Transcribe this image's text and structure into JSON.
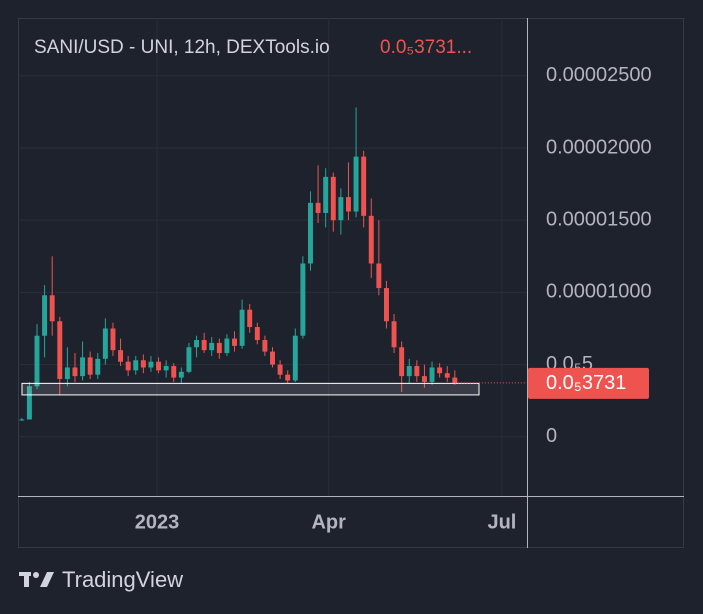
{
  "chart_data": {
    "type": "candlestick",
    "title": "SANI/USD - UNI, 12h, DEXTools.io",
    "title_value": "0.0₅3731...",
    "brand": "TradingView",
    "categories": [
      null,
      null,
      null,
      null,
      null,
      null,
      null,
      null,
      null,
      null,
      null,
      null,
      null,
      null,
      null,
      null,
      null,
      null,
      null,
      null,
      null,
      null,
      null,
      null,
      null,
      null,
      null,
      null,
      null,
      null,
      null,
      null,
      null,
      null,
      null,
      null,
      null,
      null,
      null,
      null,
      null,
      null,
      null,
      null,
      null,
      null,
      null,
      null,
      null,
      null,
      null,
      null,
      null,
      null,
      null,
      null,
      null,
      null
    ],
    "open": [
      1.2e-06,
      1.2e-06,
      3.5e-06,
      7e-06,
      9.8e-06,
      8e-06,
      4e-06,
      4.8e-06,
      4.2e-06,
      5.5e-06,
      4.3e-06,
      5.4e-06,
      7.5e-06,
      6e-06,
      5.2e-06,
      4.6e-06,
      5.3e-06,
      4.8e-06,
      5.2e-06,
      4.6e-06,
      4.9e-06,
      4.1e-06,
      4.5e-06,
      6.2e-06,
      6.7e-06,
      6e-06,
      6.5e-06,
      5.8e-06,
      6.8e-06,
      6.3e-06,
      8.8e-06,
      7.6e-06,
      6.7e-06,
      5.9e-06,
      5e-06,
      4.3e-06,
      3.9e-06,
      7e-06,
      1.2e-05,
      1.62e-05,
      1.55e-05,
      1.8e-05,
      1.5e-05,
      1.66e-05,
      1.56e-05,
      1.94e-05,
      1.53e-05,
      1.2e-05,
      1.03e-05,
      8e-06,
      6.2e-06,
      4.2e-06,
      4.9e-06,
      4.2e-06,
      3.8e-06,
      4.8e-06,
      4.4e-06,
      4.1e-06
    ],
    "high": [
      1.3e-06,
      3.8e-06,
      7.8e-06,
      1.05e-05,
      1.25e-05,
      8.3e-06,
      6.2e-06,
      5.8e-06,
      6.6e-06,
      5.9e-06,
      5.8e-06,
      8.2e-06,
      7.9e-06,
      6.8e-06,
      5.6e-06,
      5.6e-06,
      5.7e-06,
      5.6e-06,
      5.5e-06,
      5.3e-06,
      5.1e-06,
      4.8e-06,
      6.5e-06,
      7e-06,
      7.2e-06,
      6.9e-06,
      6.8e-06,
      7.1e-06,
      7.3e-06,
      9.5e-06,
      9.2e-06,
      7.9e-06,
      7e-06,
      6.2e-06,
      5.3e-06,
      4.6e-06,
      7.5e-06,
      1.25e-05,
      1.7e-05,
      1.88e-05,
      1.86e-05,
      1.83e-05,
      1.72e-05,
      1.9e-05,
      2.28e-05,
      1.98e-05,
      1.65e-05,
      1.5e-05,
      1.08e-05,
      8.5e-06,
      6.6e-06,
      5.4e-06,
      5.3e-06,
      5e-06,
      5.2e-06,
      5.1e-06,
      4.9e-06,
      4.6e-06
    ],
    "low": [
      1.1e-06,
      1.2e-06,
      3.3e-06,
      5.5e-06,
      7e-06,
      2.9e-06,
      3.5e-06,
      3.8e-06,
      3.9e-06,
      4e-06,
      4e-06,
      5e-06,
      5.6e-06,
      4.9e-06,
      4.2e-06,
      4.3e-06,
      4.4e-06,
      4.5e-06,
      4.4e-06,
      4.1e-06,
      3.8e-06,
      3.7e-06,
      4.4e-06,
      5.5e-06,
      5.8e-06,
      5.6e-06,
      5.4e-06,
      5.6e-06,
      5.9e-06,
      6.1e-06,
      7.2e-06,
      6.4e-06,
      5.6e-06,
      4.8e-06,
      4e-06,
      3.7e-06,
      3.8e-06,
      6.8e-06,
      1.15e-05,
      1.48e-05,
      1.45e-05,
      1.42e-05,
      1.4e-05,
      1.5e-05,
      1.52e-05,
      1.45e-05,
      1.1e-05,
      9.8e-06,
      7.5e-06,
      5.8e-06,
      3.1e-06,
      3.7e-06,
      3.8e-06,
      3.4e-06,
      3.6e-06,
      4.1e-06,
      3.8e-06,
      3.6e-06
    ],
    "close": [
      1.2e-06,
      3.5e-06,
      7e-06,
      9.8e-06,
      8e-06,
      4e-06,
      4.8e-06,
      4.2e-06,
      5.5e-06,
      4.3e-06,
      5.4e-06,
      7.5e-06,
      6e-06,
      5.2e-06,
      4.6e-06,
      5.3e-06,
      4.8e-06,
      5.2e-06,
      4.6e-06,
      4.9e-06,
      4.1e-06,
      4.5e-06,
      6.2e-06,
      6.7e-06,
      6e-06,
      6.5e-06,
      5.8e-06,
      6.8e-06,
      6.3e-06,
      8.8e-06,
      7.6e-06,
      6.7e-06,
      5.9e-06,
      5e-06,
      4.3e-06,
      3.9e-06,
      7e-06,
      1.2e-05,
      1.62e-05,
      1.55e-05,
      1.8e-05,
      1.5e-05,
      1.66e-05,
      1.56e-05,
      1.94e-05,
      1.53e-05,
      1.2e-05,
      1.03e-05,
      8e-06,
      6.2e-06,
      4.2e-06,
      4.9e-06,
      4.2e-06,
      3.8e-06,
      4.8e-06,
      4.4e-06,
      4.1e-06,
      3.731e-06
    ],
    "up_color": "#26a69a",
    "down_color": "#ef5350",
    "xlim": [
      -0.5,
      66.5
    ],
    "xticks": [
      {
        "value": 17.8,
        "label": "2023"
      },
      {
        "value": 40.4,
        "label": "Apr"
      },
      {
        "value": 63.2,
        "label": "Jul"
      }
    ],
    "ylim": [
      -4.1e-06,
      2.9e-05
    ],
    "yticks": [
      {
        "value": 0,
        "label": "0"
      },
      {
        "value": 5e-06,
        "label": "0.0₅5"
      },
      {
        "value": 1e-05,
        "label": "0.00001000"
      },
      {
        "value": 1.5e-05,
        "label": "0.00001500"
      },
      {
        "value": 2e-05,
        "label": "0.00002000"
      },
      {
        "value": 2.5e-05,
        "label": "0.00002500"
      }
    ],
    "grid": true,
    "zone": {
      "low": 2.9e-06,
      "high": 3.7e-06
    },
    "last_price": {
      "value": 3.731e-06,
      "label": "0.0₅3731"
    }
  }
}
